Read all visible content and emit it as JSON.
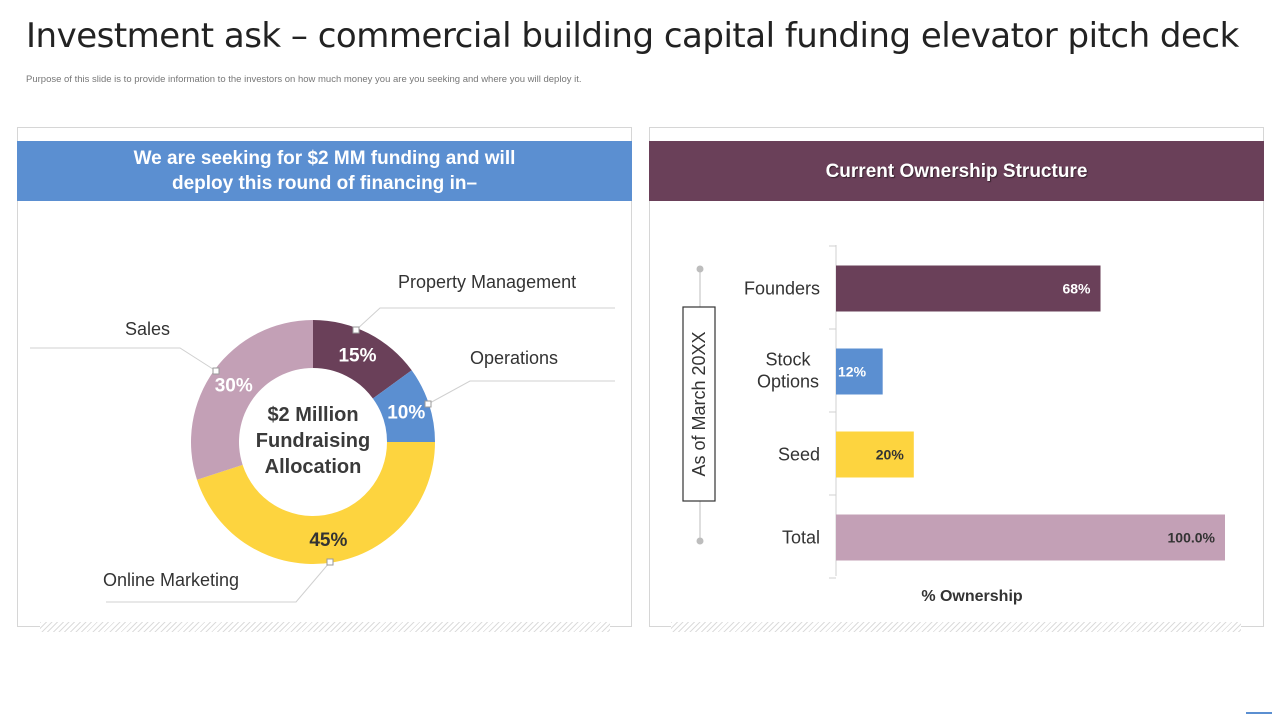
{
  "slide": {
    "title": "Investment ask – commercial building capital funding elevator pitch deck",
    "subtitle": "Purpose of this slide is to provide information to the investors on how much money you are you seeking and where you will deploy it."
  },
  "left_panel": {
    "header": "We are seeking for $2 MM funding and will  deploy this round of financing in–",
    "center_label": [
      "$2 Million",
      "Fundraising",
      "Allocation"
    ]
  },
  "right_panel": {
    "header": "Current Ownership Structure",
    "side_label": "As of March 20XX",
    "xlabel": "% Ownership"
  },
  "colors": {
    "blue": "#5b8fd1",
    "plum": "#6a4059",
    "yellow": "#fdd43f",
    "mauve": "#c3a0b6"
  },
  "chart_data": [
    {
      "type": "pie",
      "style": "donut",
      "slices": [
        {
          "label": "Property Management",
          "value": 15,
          "display": "15%",
          "color": "#6a4059"
        },
        {
          "label": "Operations",
          "value": 10,
          "display": "10%",
          "color": "#5b8fd1"
        },
        {
          "label": "Online Marketing",
          "value": 45,
          "display": "45%",
          "color": "#fdd43f"
        },
        {
          "label": "Sales",
          "value": 30,
          "display": "30%",
          "color": "#c3a0b6"
        }
      ]
    },
    {
      "type": "bar",
      "orientation": "horizontal",
      "categories": [
        "Founders",
        "Stock Options",
        "Seed",
        "Total"
      ],
      "values": [
        68,
        12,
        20,
        100
      ],
      "display": [
        "68%",
        "12%",
        "20%",
        "100.0%"
      ],
      "colors": [
        "#6a4059",
        "#5b8fd1",
        "#fdd43f",
        "#c3a0b6"
      ],
      "xlabel": "% Ownership",
      "xlim": [
        0,
        100
      ],
      "grid": false
    }
  ]
}
